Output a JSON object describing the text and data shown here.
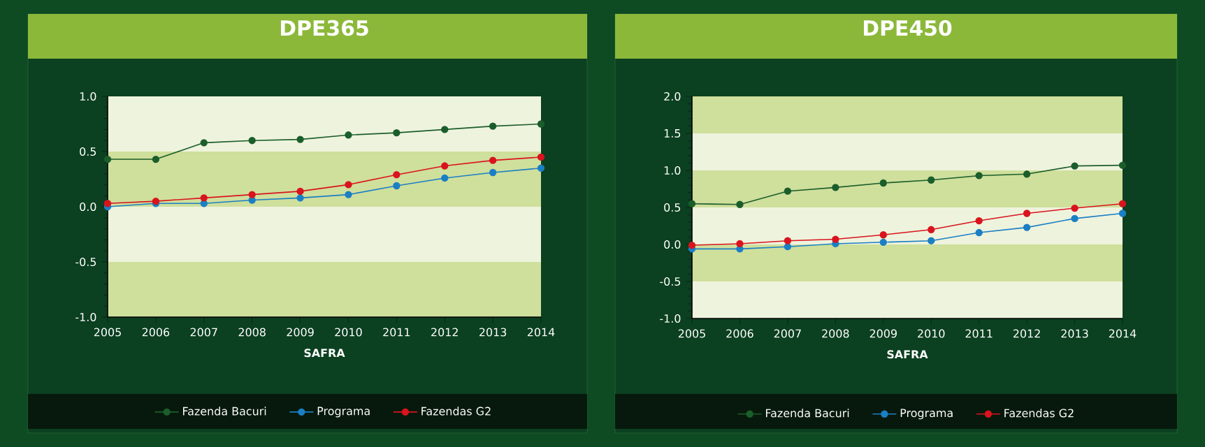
{
  "chart_data": [
    {
      "type": "line",
      "title": "DPE365",
      "xlabel": "SAFRA",
      "categories": [
        "2005",
        "2006",
        "2007",
        "2008",
        "2009",
        "2010",
        "2011",
        "2012",
        "2013",
        "2014"
      ],
      "ylim": [
        -1.0,
        1.0
      ],
      "yticks": [
        {
          "value": -1.0,
          "label": "-1.0"
        },
        {
          "value": -0.5,
          "label": "-0.5"
        },
        {
          "value": 0.0,
          "label": "0.0"
        },
        {
          "value": 0.5,
          "label": "0.5"
        },
        {
          "value": 1.0,
          "label": "1.0"
        }
      ],
      "grid": false,
      "legend": "bottom",
      "marker": "circle",
      "line_style": "solid",
      "bands": [
        {
          "axis": "y",
          "from": -1.0,
          "to": -0.5,
          "color": "#cfdf9c"
        },
        {
          "axis": "y",
          "from": 0.0,
          "to": 0.5,
          "color": "#cfdf9c"
        }
      ],
      "series": [
        {
          "name": "Fazenda Bacuri",
          "color": "#1b5e2b",
          "values": [
            0.43,
            0.43,
            0.58,
            0.6,
            0.61,
            0.65,
            0.67,
            0.7,
            0.73,
            0.75
          ]
        },
        {
          "name": "Programa",
          "color": "#1b7fc4",
          "values": [
            0.0,
            0.03,
            0.03,
            0.06,
            0.08,
            0.11,
            0.19,
            0.26,
            0.31,
            0.35
          ]
        },
        {
          "name": "Fazendas G2",
          "color": "#d9141e",
          "values": [
            0.03,
            0.05,
            0.08,
            0.11,
            0.14,
            0.2,
            0.29,
            0.37,
            0.42,
            0.45
          ]
        }
      ]
    },
    {
      "type": "line",
      "title": "DPE450",
      "xlabel": "SAFRA",
      "categories": [
        "2005",
        "2006",
        "2007",
        "2008",
        "2009",
        "2010",
        "2011",
        "2012",
        "2013",
        "2014"
      ],
      "ylim": [
        -1.0,
        2.0
      ],
      "yticks": [
        {
          "value": -1.0,
          "label": "-1.0"
        },
        {
          "value": -0.5,
          "label": "-0.5"
        },
        {
          "value": 0.0,
          "label": "0.0"
        },
        {
          "value": 0.5,
          "label": "0.5"
        },
        {
          "value": 1.0,
          "label": "1.0"
        },
        {
          "value": 1.5,
          "label": "1.5"
        },
        {
          "value": 2.0,
          "label": "2.0"
        }
      ],
      "grid": false,
      "legend": "bottom",
      "marker": "circle",
      "line_style": "solid",
      "bands": [
        {
          "axis": "y",
          "from": -0.5,
          "to": 0.0,
          "color": "#cfdf9c"
        },
        {
          "axis": "y",
          "from": 0.5,
          "to": 1.0,
          "color": "#cfdf9c"
        },
        {
          "axis": "y",
          "from": 1.5,
          "to": 2.0,
          "color": "#cfdf9c"
        }
      ],
      "series": [
        {
          "name": "Fazenda Bacuri",
          "color": "#1b5e2b",
          "values": [
            0.55,
            0.54,
            0.72,
            0.77,
            0.83,
            0.87,
            0.93,
            0.95,
            1.06,
            1.07
          ]
        },
        {
          "name": "Programa",
          "color": "#1b7fc4",
          "values": [
            -0.06,
            -0.06,
            -0.03,
            0.01,
            0.03,
            0.05,
            0.16,
            0.23,
            0.35,
            0.42
          ]
        },
        {
          "name": "Fazendas G2",
          "color": "#d9141e",
          "values": [
            -0.01,
            0.01,
            0.05,
            0.07,
            0.13,
            0.2,
            0.32,
            0.42,
            0.49,
            0.55
          ]
        }
      ]
    }
  ]
}
